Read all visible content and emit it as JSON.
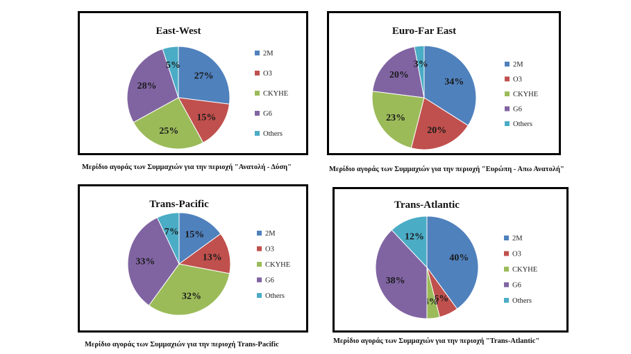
{
  "chart_data": [
    {
      "type": "pie",
      "title": "East-West",
      "categories": [
        "2M",
        "O3",
        "CKYHE",
        "G6",
        "Others"
      ],
      "values": [
        27,
        15,
        25,
        28,
        5
      ],
      "labels": [
        "27%",
        "15%",
        "25%",
        "28%",
        "5%"
      ],
      "legend_position": "right",
      "caption": "Μερίδιο αγοράς των Συμμαχιών για την περιοχή \"Ανατολή - Δύση\""
    },
    {
      "type": "pie",
      "title": "Euro-Far East",
      "categories": [
        "2M",
        "O3",
        "CKYHE",
        "G6",
        "Others"
      ],
      "values": [
        34,
        20,
        23,
        20,
        3
      ],
      "labels": [
        "34%",
        "20%",
        "23%",
        "20%",
        "3%"
      ],
      "legend_position": "right",
      "caption": "Μερίδιο αγοράς των Συμμαχιών για την περιοχή \"Ευρώπη - Απω Ανατολή\""
    },
    {
      "type": "pie",
      "title": "Trans-Pacific",
      "categories": [
        "2M",
        "O3",
        "CKYHE",
        "G6",
        "Others"
      ],
      "values": [
        15,
        13,
        32,
        33,
        7
      ],
      "labels": [
        "15%",
        "13%",
        "32%",
        "33%",
        "7%"
      ],
      "legend_position": "right",
      "caption": "Μερίδιο αγοράς των Συμμαχιών για την περιοχή Trans-Pacific"
    },
    {
      "type": "pie",
      "title": "Trans-Atlantic",
      "categories": [
        "2M",
        "O3",
        "CKYHE",
        "G6",
        "Others"
      ],
      "values": [
        40,
        6,
        4,
        38,
        12
      ],
      "labels": [
        "40%",
        "6%",
        "4%",
        "38%",
        "12%"
      ],
      "legend_position": "right",
      "caption": "Μερίδιο αγοράς των Συμμαχιών για την περιοχή \"Trans-Atlantic\""
    }
  ],
  "colors": [
    "#4f81bd",
    "#c0504d",
    "#9bbb59",
    "#8064a2",
    "#4bacc6"
  ]
}
